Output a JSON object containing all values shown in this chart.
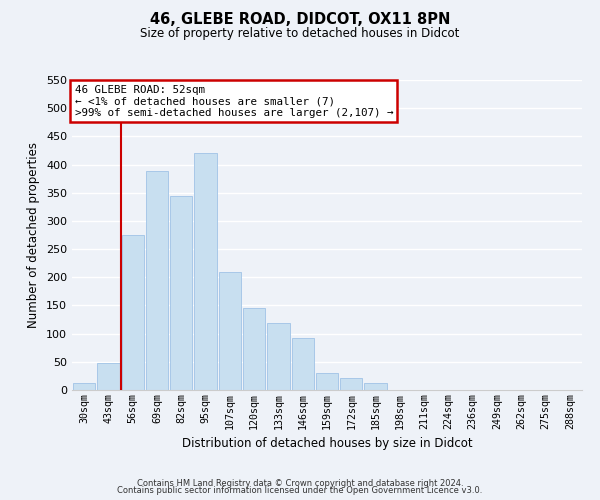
{
  "title": "46, GLEBE ROAD, DIDCOT, OX11 8PN",
  "subtitle": "Size of property relative to detached houses in Didcot",
  "xlabel": "Distribution of detached houses by size in Didcot",
  "ylabel": "Number of detached properties",
  "footer_lines": [
    "Contains HM Land Registry data © Crown copyright and database right 2024.",
    "Contains public sector information licensed under the Open Government Licence v3.0."
  ],
  "bar_labels": [
    "30sqm",
    "43sqm",
    "56sqm",
    "69sqm",
    "82sqm",
    "95sqm",
    "107sqm",
    "120sqm",
    "133sqm",
    "146sqm",
    "159sqm",
    "172sqm",
    "185sqm",
    "198sqm",
    "211sqm",
    "224sqm",
    "236sqm",
    "249sqm",
    "262sqm",
    "275sqm",
    "288sqm"
  ],
  "bar_values": [
    12,
    48,
    275,
    388,
    345,
    420,
    210,
    145,
    118,
    92,
    30,
    22,
    12,
    0,
    0,
    0,
    0,
    0,
    0,
    0,
    0
  ],
  "bar_color": "#c8dff0",
  "bar_edge_color": "#a8c8e8",
  "ylim": [
    0,
    550
  ],
  "yticks": [
    0,
    50,
    100,
    150,
    200,
    250,
    300,
    350,
    400,
    450,
    500,
    550
  ],
  "annotation_title": "46 GLEBE ROAD: 52sqm",
  "annotation_line1": "← <1% of detached houses are smaller (7)",
  "annotation_line2": ">99% of semi-detached houses are larger (2,107) →",
  "annotation_box_facecolor": "#ffffff",
  "annotation_box_edgecolor": "#cc0000",
  "property_line_color": "#cc0000",
  "background_color": "#eef2f8",
  "grid_color": "#ffffff",
  "spine_color": "#cccccc"
}
